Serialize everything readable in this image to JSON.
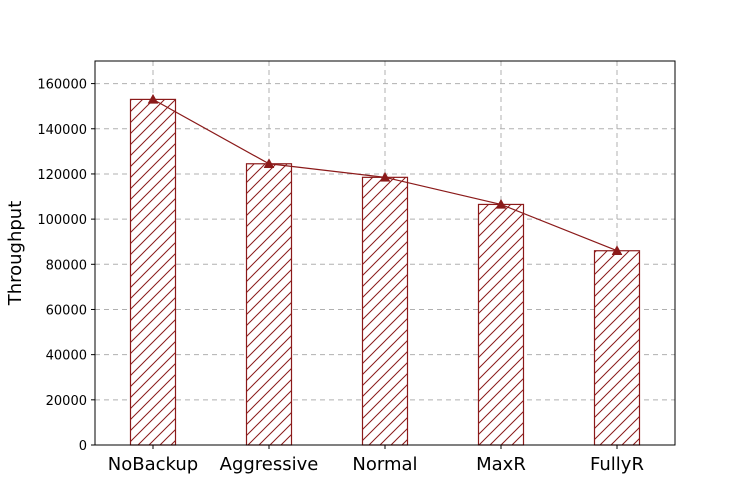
{
  "chart_data": {
    "type": "bar",
    "categories": [
      "NoBackup",
      "Aggressive",
      "Normal",
      "MaxR",
      "FullyR"
    ],
    "values": [
      153000,
      124500,
      118500,
      106500,
      86000
    ],
    "line_overlay": {
      "marker": "triangle",
      "values": [
        153000,
        124500,
        118500,
        106500,
        86000
      ]
    },
    "title": "",
    "xlabel": "",
    "ylabel": "Throughput",
    "ylim": [
      0,
      170000
    ],
    "yticks": [
      0,
      20000,
      40000,
      60000,
      80000,
      100000,
      120000,
      140000,
      160000
    ],
    "grid": true,
    "bar_fill": "hatched",
    "colors": {
      "bar_edge": "#8b1a1a",
      "hatch": "#8b1a1a",
      "line": "#8b1a1a",
      "grid": "#b0b0b0"
    }
  }
}
